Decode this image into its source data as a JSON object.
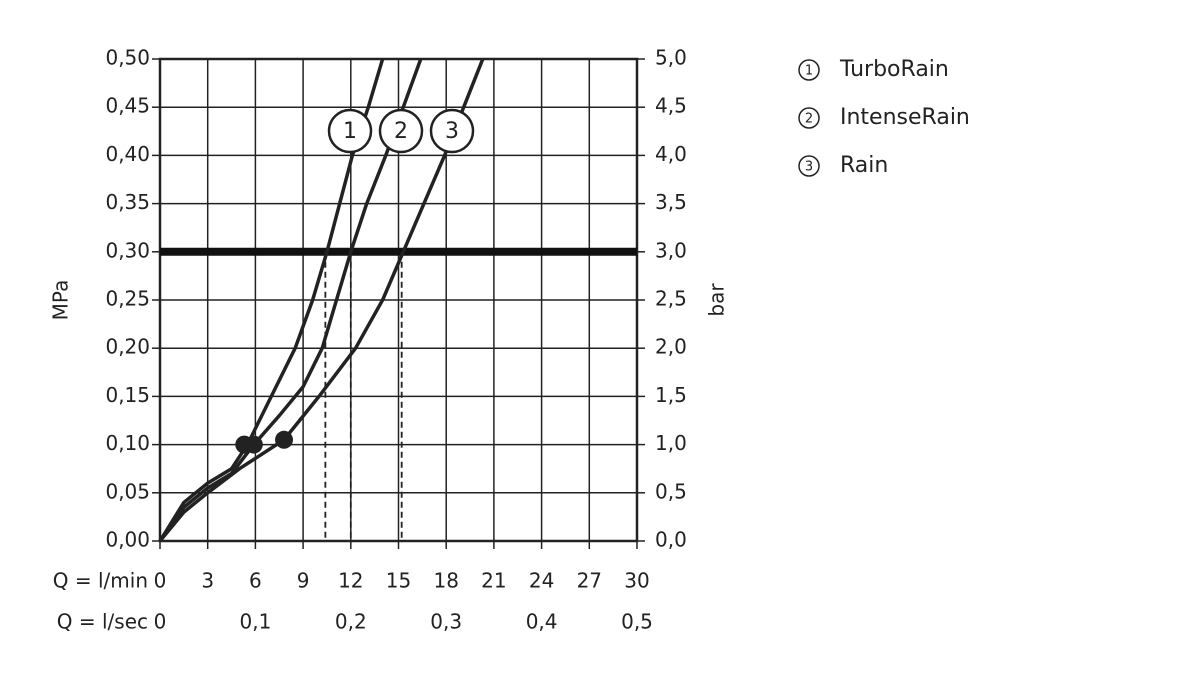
{
  "chart_data": {
    "type": "line",
    "ylabel": "MPa",
    "y2label": "bar",
    "xlabel": "Q = l/min",
    "x2label": "Q = l/sec",
    "xlim": [
      0,
      30
    ],
    "xticks": [
      0,
      3,
      6,
      9,
      12,
      15,
      18,
      21,
      24,
      27,
      30
    ],
    "x2lim": [
      0,
      0.5
    ],
    "x2ticks": [
      0,
      {
        "value": 0.1,
        "label": "0,1"
      },
      {
        "value": 0.2,
        "label": "0,2"
      },
      {
        "value": 0.3,
        "label": "0,3"
      },
      {
        "value": 0.4,
        "label": "0,4"
      },
      {
        "value": 0.5,
        "label": "0,5"
      }
    ],
    "ylim": [
      0,
      0.5
    ],
    "yticks": [
      {
        "value": 0,
        "label": "0,00"
      },
      {
        "value": 0.05,
        "label": "0,05"
      },
      {
        "value": 0.1,
        "label": "0,10"
      },
      {
        "value": 0.15,
        "label": "0,15"
      },
      {
        "value": 0.2,
        "label": "0,20"
      },
      {
        "value": 0.25,
        "label": "0,25"
      },
      {
        "value": 0.3,
        "label": "0,30"
      },
      {
        "value": 0.35,
        "label": "0,35"
      },
      {
        "value": 0.4,
        "label": "0,40"
      },
      {
        "value": 0.45,
        "label": "0,45"
      },
      {
        "value": 0.5,
        "label": "0,50"
      }
    ],
    "y2lim": [
      0,
      5
    ],
    "y2ticks": [
      {
        "value": 0,
        "label": "0,0"
      },
      {
        "value": 0.5,
        "label": "0,5"
      },
      {
        "value": 1,
        "label": "1,0"
      },
      {
        "value": 1.5,
        "label": "1,5"
      },
      {
        "value": 2,
        "label": "2,0"
      },
      {
        "value": 2.5,
        "label": "2,5"
      },
      {
        "value": 3,
        "label": "3,0"
      },
      {
        "value": 3.5,
        "label": "3,5"
      },
      {
        "value": 4,
        "label": "4,0"
      },
      {
        "value": 4.5,
        "label": "4,5"
      },
      {
        "value": 5,
        "label": "5,0"
      }
    ],
    "grid": true,
    "reference_line": 0.3,
    "drop_lines": [
      10.4,
      12.0,
      15.2
    ],
    "series": [
      {
        "name": "TurboRain",
        "label": "1",
        "color": "#222222",
        "x": [
          0,
          1.5,
          3,
          4.5,
          5.5,
          7,
          8.5,
          9.6,
          10.5,
          11.3,
          12.1,
          13.1,
          14.0
        ],
        "values": [
          0,
          0.04,
          0.06,
          0.075,
          0.1,
          0.15,
          0.2,
          0.25,
          0.3,
          0.35,
          0.4,
          0.45,
          0.5
        ],
        "marker": {
          "x": 5.3,
          "y": 0.1
        }
      },
      {
        "name": "IntenseRain",
        "label": "2",
        "color": "#222222",
        "x": [
          0,
          1.5,
          3,
          4.5,
          5.9,
          7.5,
          9,
          10.2,
          11.1,
          12,
          13,
          14.2,
          15.3,
          16.4
        ],
        "values": [
          0,
          0.035,
          0.055,
          0.07,
          0.1,
          0.13,
          0.16,
          0.2,
          0.25,
          0.3,
          0.35,
          0.4,
          0.45,
          0.5
        ],
        "marker": {
          "x": 5.9,
          "y": 0.1
        }
      },
      {
        "name": "Rain",
        "label": "3",
        "color": "#222222",
        "x": [
          0,
          1.5,
          3,
          5,
          7.8,
          10,
          12.3,
          14,
          15.3,
          16.6,
          17.9,
          19.1,
          20.3
        ],
        "values": [
          0,
          0.03,
          0.05,
          0.075,
          0.105,
          0.15,
          0.2,
          0.25,
          0.3,
          0.35,
          0.4,
          0.45,
          0.5
        ],
        "marker": {
          "x": 7.8,
          "y": 0.105
        }
      }
    ]
  }
}
